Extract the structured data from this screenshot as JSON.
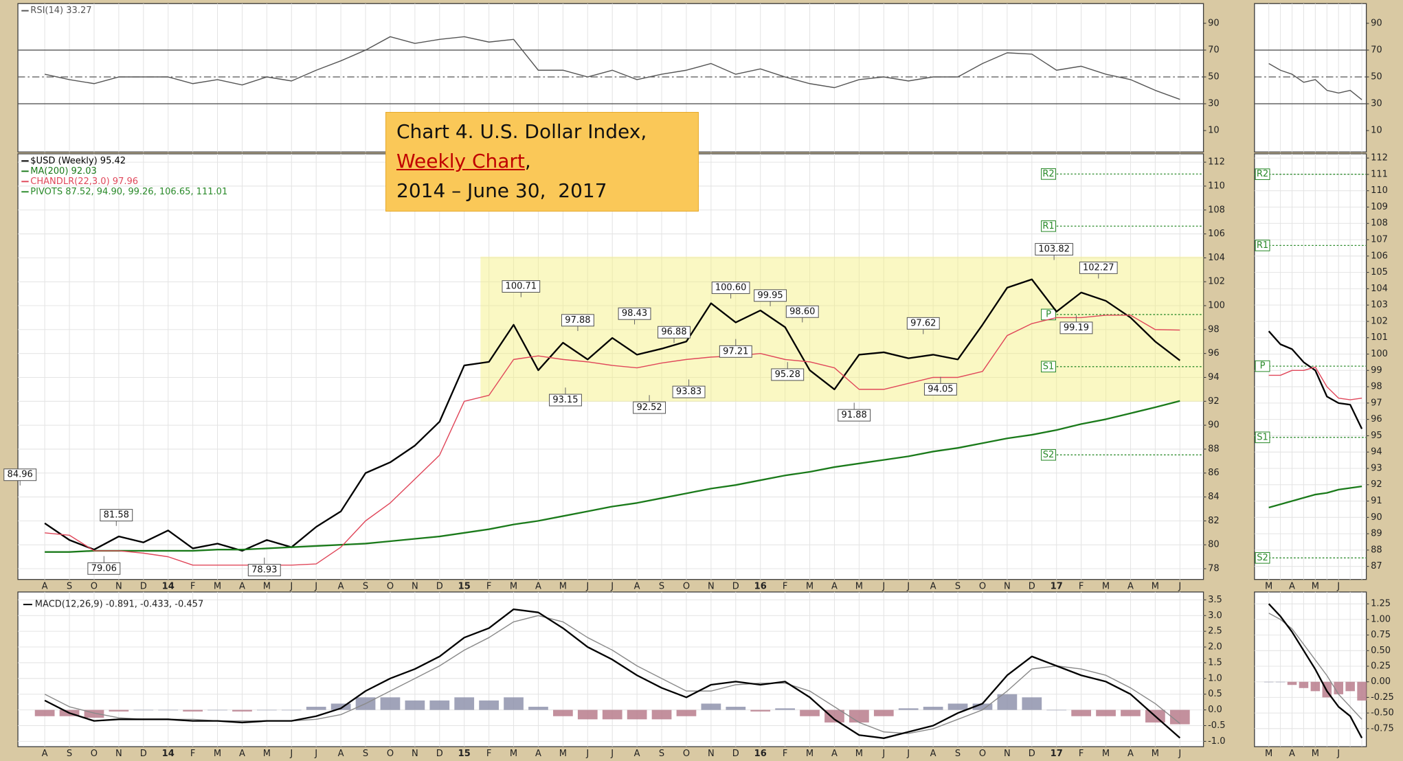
{
  "chart_data": [
    {
      "type": "line",
      "ylim": [
        -6,
        104.7
      ],
      "yticks": [
        90,
        70,
        50,
        30,
        10
      ],
      "grid": false,
      "reference_lines": [
        70,
        50,
        30
      ],
      "series": [
        {
          "name": "RSI(14) 33.27",
          "color": "#555555",
          "values": [
            52,
            48,
            45,
            50,
            50,
            50,
            45,
            48,
            44,
            50,
            47,
            55,
            62,
            70,
            80,
            75,
            78,
            80,
            76,
            78,
            55,
            55,
            50,
            55,
            48,
            52,
            55,
            60,
            52,
            56,
            50,
            45,
            42,
            48,
            50,
            47,
            50,
            50,
            60,
            68,
            67,
            55,
            58,
            52,
            48,
            40,
            33.27
          ]
        }
      ]
    },
    {
      "type": "line",
      "ylim": [
        77.1,
        112.7
      ],
      "yticks": [
        78,
        80,
        82,
        84,
        86,
        88,
        90,
        92,
        94,
        96,
        98,
        100,
        102,
        104,
        106,
        108,
        110,
        112
      ],
      "grid": true,
      "categories": [
        "A",
        "S",
        "O",
        "N",
        "D",
        "14",
        "F",
        "M",
        "A",
        "M",
        "J",
        "J",
        "A",
        "S",
        "O",
        "N",
        "D",
        "15",
        "F",
        "M",
        "A",
        "M",
        "J",
        "J",
        "A",
        "S",
        "O",
        "N",
        "D",
        "16",
        "F",
        "M",
        "A",
        "M",
        "J",
        "J",
        "A",
        "S",
        "O",
        "N",
        "D",
        "17",
        "F",
        "M",
        "A",
        "M",
        "J"
      ],
      "series": [
        {
          "name": "$USD (Weekly) 95.42",
          "color": "#000000",
          "values": [
            81.8,
            80.4,
            79.6,
            80.7,
            80.2,
            81.2,
            79.7,
            80.1,
            79.5,
            80.4,
            79.8,
            81.5,
            82.8,
            86.0,
            86.9,
            88.3,
            90.3,
            95.0,
            95.3,
            98.4,
            94.6,
            96.9,
            95.5,
            97.3,
            95.9,
            96.4,
            97.0,
            100.2,
            98.6,
            99.6,
            98.2,
            94.6,
            93.0,
            95.9,
            96.1,
            95.6,
            95.9,
            95.5,
            98.4,
            101.5,
            102.2,
            99.5,
            101.1,
            100.4,
            99.0,
            97.0,
            95.42
          ]
        },
        {
          "name": "MA(200) 92.03",
          "color": "#1a7a1a",
          "values": [
            79.4,
            79.4,
            79.5,
            79.5,
            79.5,
            79.5,
            79.5,
            79.6,
            79.6,
            79.7,
            79.8,
            79.9,
            80.0,
            80.1,
            80.3,
            80.5,
            80.7,
            81.0,
            81.3,
            81.7,
            82.0,
            82.4,
            82.8,
            83.2,
            83.5,
            83.9,
            84.3,
            84.7,
            85.0,
            85.4,
            85.8,
            86.1,
            86.5,
            86.8,
            87.1,
            87.4,
            87.8,
            88.1,
            88.5,
            88.9,
            89.2,
            89.6,
            90.1,
            90.5,
            91.0,
            91.5,
            92.03
          ]
        },
        {
          "name": "CHANDLR(22,3.0) 97.96",
          "color": "#e0475a",
          "values": [
            81.0,
            80.8,
            79.5,
            79.5,
            79.3,
            79.0,
            78.3,
            78.3,
            78.3,
            78.3,
            78.3,
            78.4,
            79.8,
            82.0,
            83.5,
            85.5,
            87.5,
            92.0,
            92.5,
            95.5,
            95.8,
            95.5,
            95.3,
            95.0,
            94.8,
            95.2,
            95.5,
            95.7,
            95.8,
            96.0,
            95.5,
            95.3,
            94.8,
            93.0,
            93.0,
            93.5,
            94.0,
            94.0,
            94.5,
            97.5,
            98.5,
            99.0,
            99.0,
            99.2,
            99.2,
            98.0,
            97.96
          ]
        }
      ],
      "pivots": {
        "name": "PIVOTS 87.52, 94.90, 99.26, 106.65, 111.01",
        "color": "#2a8a2a",
        "levels": [
          {
            "label": "S2",
            "value": 87.52
          },
          {
            "label": "S1",
            "value": 94.9
          },
          {
            "label": "P",
            "value": 99.26
          },
          {
            "label": "R1",
            "value": 106.65
          },
          {
            "label": "R2",
            "value": 111.01
          }
        ]
      },
      "callouts": [
        {
          "label": "84.96",
          "value": 84.96,
          "x": -1.0
        },
        {
          "label": "81.58",
          "value": 81.58,
          "x": 2.9
        },
        {
          "label": "79.06",
          "value": 79.06,
          "x": 2.4
        },
        {
          "label": "78.93",
          "value": 78.93,
          "x": 8.9
        },
        {
          "label": "100.71",
          "value": 100.71,
          "x": 19.3
        },
        {
          "label": "97.88",
          "value": 97.88,
          "x": 21.6
        },
        {
          "label": "93.15",
          "value": 93.15,
          "x": 21.1
        },
        {
          "label": "98.43",
          "value": 98.43,
          "x": 23.9
        },
        {
          "label": "92.52",
          "value": 92.52,
          "x": 24.5
        },
        {
          "label": "96.88",
          "value": 96.88,
          "x": 25.5
        },
        {
          "label": "93.83",
          "value": 93.83,
          "x": 26.1
        },
        {
          "label": "100.60",
          "value": 100.6,
          "x": 27.8
        },
        {
          "label": "97.21",
          "value": 97.21,
          "x": 28.0
        },
        {
          "label": "99.95",
          "value": 99.95,
          "x": 29.4
        },
        {
          "label": "95.28",
          "value": 95.28,
          "x": 30.1
        },
        {
          "label": "98.60",
          "value": 98.6,
          "x": 30.7
        },
        {
          "label": "91.88",
          "value": 91.88,
          "x": 32.8
        },
        {
          "label": "97.62",
          "value": 97.62,
          "x": 35.6
        },
        {
          "label": "94.05",
          "value": 94.05,
          "x": 36.3
        },
        {
          "label": "103.82",
          "value": 103.82,
          "x": 40.9
        },
        {
          "label": "102.27",
          "value": 102.27,
          "x": 42.7
        },
        {
          "label": "99.19",
          "value": 99.19,
          "x": 41.8
        }
      ]
    },
    {
      "type": "line",
      "title": "MACD(12,26,9) -0.891, -0.433, -0.457",
      "ylim": [
        -1.17,
        3.75
      ],
      "yticks": [
        3.5,
        {
          "value": 3,
          "label": "3.0"
        },
        2.5,
        {
          "value": 2,
          "label": "2.0"
        },
        1.5,
        {
          "value": 1,
          "label": "1.0"
        },
        0.5,
        {
          "value": 0,
          "label": "0.0"
        },
        -0.5,
        {
          "value": -1,
          "label": "-1.0"
        }
      ],
      "grid": true,
      "categories": [
        "A",
        "S",
        "O",
        "N",
        "D",
        "14",
        "F",
        "M",
        "A",
        "M",
        "J",
        "J",
        "A",
        "S",
        "O",
        "N",
        "D",
        "15",
        "F",
        "M",
        "A",
        "M",
        "J",
        "J",
        "A",
        "S",
        "O",
        "N",
        "D",
        "16",
        "F",
        "M",
        "A",
        "M",
        "J",
        "J",
        "A",
        "S",
        "O",
        "N",
        "D",
        "17",
        "F",
        "M",
        "A",
        "M",
        "J"
      ],
      "series": [
        {
          "type": "bar",
          "color": "#8f93ad",
          "negative_color": "#b97c8c",
          "values": [
            -0.2,
            -0.2,
            -0.25,
            -0.05,
            0,
            0,
            -0.05,
            0,
            -0.05,
            0,
            0,
            0.1,
            0.2,
            0.4,
            0.4,
            0.3,
            0.3,
            0.4,
            0.3,
            0.4,
            0.1,
            -0.2,
            -0.3,
            -0.3,
            -0.3,
            -0.3,
            -0.2,
            0.2,
            0.1,
            -0.05,
            0.05,
            -0.2,
            -0.4,
            -0.4,
            -0.2,
            0.05,
            0.1,
            0.2,
            0.2,
            0.5,
            0.4,
            0,
            -0.2,
            -0.2,
            -0.2,
            -0.4,
            -0.457
          ]
        },
        {
          "color": "#8a8a8a",
          "values": [
            0.5,
            0.1,
            -0.1,
            -0.25,
            -0.3,
            -0.3,
            -0.3,
            -0.35,
            -0.35,
            -0.35,
            -0.35,
            -0.3,
            -0.15,
            0.2,
            0.6,
            1.0,
            1.4,
            1.9,
            2.3,
            2.8,
            3.0,
            2.8,
            2.3,
            1.9,
            1.4,
            1.0,
            0.6,
            0.6,
            0.8,
            0.85,
            0.85,
            0.6,
            0.1,
            -0.4,
            -0.7,
            -0.75,
            -0.6,
            -0.3,
            0.0,
            0.6,
            1.3,
            1.4,
            1.3,
            1.1,
            0.7,
            0.2,
            -0.433
          ]
        },
        {
          "color": "#000000",
          "values": [
            0.3,
            -0.1,
            -0.35,
            -0.3,
            -0.3,
            -0.3,
            -0.35,
            -0.35,
            -0.4,
            -0.35,
            -0.35,
            -0.2,
            0.05,
            0.6,
            1.0,
            1.3,
            1.7,
            2.3,
            2.6,
            3.2,
            3.1,
            2.6,
            2.0,
            1.6,
            1.1,
            0.7,
            0.4,
            0.8,
            0.9,
            0.8,
            0.9,
            0.4,
            -0.3,
            -0.8,
            -0.9,
            -0.7,
            -0.5,
            -0.1,
            0.2,
            1.1,
            1.7,
            1.4,
            1.1,
            0.9,
            0.5,
            -0.2,
            -0.891
          ]
        }
      ]
    },
    {
      "type": "line",
      "ylim": [
        -6,
        104.7
      ],
      "yticks": [
        90,
        70,
        50,
        30,
        10
      ],
      "grid": false,
      "reference_lines": [
        70,
        50,
        30
      ],
      "series": [
        {
          "color": "#555555",
          "values": [
            60,
            55,
            52,
            46,
            48,
            40,
            38,
            40,
            33
          ]
        }
      ]
    },
    {
      "type": "line",
      "ylim": [
        86.2,
        112.26
      ],
      "yticks": [
        87,
        88,
        89,
        90,
        91,
        92,
        93,
        94,
        95,
        96,
        97,
        98,
        99,
        100,
        101,
        102,
        103,
        104,
        105,
        106,
        107,
        108,
        109,
        110,
        111,
        112
      ],
      "grid": true,
      "categories": [
        "M",
        null,
        "A",
        null,
        "M",
        null,
        "J",
        null,
        null
      ],
      "series": [
        {
          "color": "#000000",
          "values": [
            101.4,
            100.6,
            100.3,
            99.5,
            99.0,
            97.4,
            97.0,
            96.9,
            95.42
          ]
        },
        {
          "color": "#1a7a1a",
          "values": [
            90.6,
            90.8,
            91.0,
            91.2,
            91.4,
            91.5,
            91.7,
            91.8,
            91.9
          ]
        },
        {
          "color": "#e0475a",
          "values": [
            98.7,
            98.7,
            99.0,
            99.0,
            99.2,
            98.0,
            97.3,
            97.2,
            97.3
          ]
        }
      ],
      "pivots": {
        "color": "#2a8a2a",
        "levels": [
          {
            "label": "S2",
            "value": 87.52
          },
          {
            "label": "S1",
            "value": 94.9
          },
          {
            "label": "P",
            "value": 99.26
          },
          {
            "label": "R1",
            "value": 106.65
          },
          {
            "label": "R2",
            "value": 111.01
          }
        ]
      }
    },
    {
      "type": "line",
      "ylim": [
        -1.04,
        1.44
      ],
      "yticks": [
        1.25,
        {
          "value": 1,
          "label": "1.00"
        },
        0.75,
        {
          "value": 0.5,
          "label": "0.50"
        },
        0.25,
        {
          "value": 0,
          "label": "0.00"
        },
        -0.25,
        {
          "value": -0.5,
          "label": "-0.50"
        },
        -0.75
      ],
      "grid": true,
      "categories": [
        "M",
        null,
        "A",
        null,
        "M",
        null,
        "J",
        null,
        null
      ],
      "series": [
        {
          "type": "bar",
          "color": "#8f93ad",
          "negative_color": "#b97c8c",
          "values": [
            0,
            0,
            -0.05,
            -0.1,
            -0.15,
            -0.25,
            -0.2,
            -0.15,
            -0.3
          ]
        },
        {
          "color": "#8a8a8a",
          "values": [
            1.1,
            1.0,
            0.85,
            0.6,
            0.35,
            0.1,
            -0.2,
            -0.4,
            -0.6
          ]
        },
        {
          "color": "#000000",
          "values": [
            1.25,
            1.05,
            0.8,
            0.5,
            0.2,
            -0.15,
            -0.4,
            -0.55,
            -0.9
          ]
        }
      ]
    }
  ],
  "note": {
    "line1": "Chart 4. U.S. Dollar Index,",
    "link": "Weekly Chart",
    "after_link": ",",
    "line3": "2014 – June 30,  2017"
  }
}
